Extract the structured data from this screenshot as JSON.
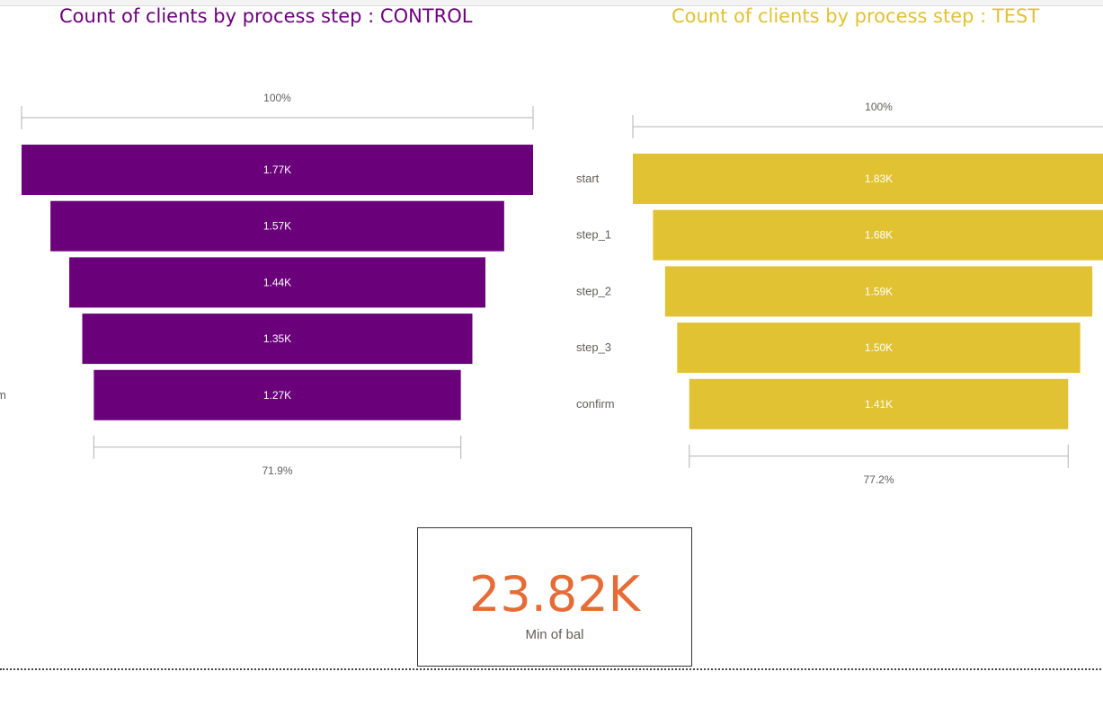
{
  "colors": {
    "control": "#6b007b",
    "test": "#e0c232",
    "kpi": "#e66c37",
    "axis_text": "#605e5c",
    "bar_text": "#ffffff",
    "bracket": "#b3b3b3"
  },
  "chart_data": [
    {
      "type": "funnel",
      "title": "Count of clients by process step : CONTROL",
      "categories": [
        "",
        "",
        "",
        "",
        "m"
      ],
      "values": [
        1770,
        1570,
        1440,
        1350,
        1270
      ],
      "data_labels": [
        "1.77K",
        "1.57K",
        "1.44K",
        "1.35K",
        "1.27K"
      ],
      "top_percent_label": "100%",
      "bottom_percent_label": "71.9%"
    },
    {
      "type": "funnel",
      "title": "Count of clients by process step : TEST",
      "categories": [
        "start",
        "step_1",
        "step_2",
        "step_3",
        "confirm"
      ],
      "values": [
        1830,
        1680,
        1590,
        1500,
        1410
      ],
      "data_labels": [
        "1.83K",
        "1.68K",
        "1.59K",
        "1.50K",
        "1.41K"
      ],
      "top_percent_label": "100%",
      "bottom_percent_label": "77.2%"
    }
  ],
  "kpi_card": {
    "value": "23.82K",
    "label": "Min of bal"
  }
}
